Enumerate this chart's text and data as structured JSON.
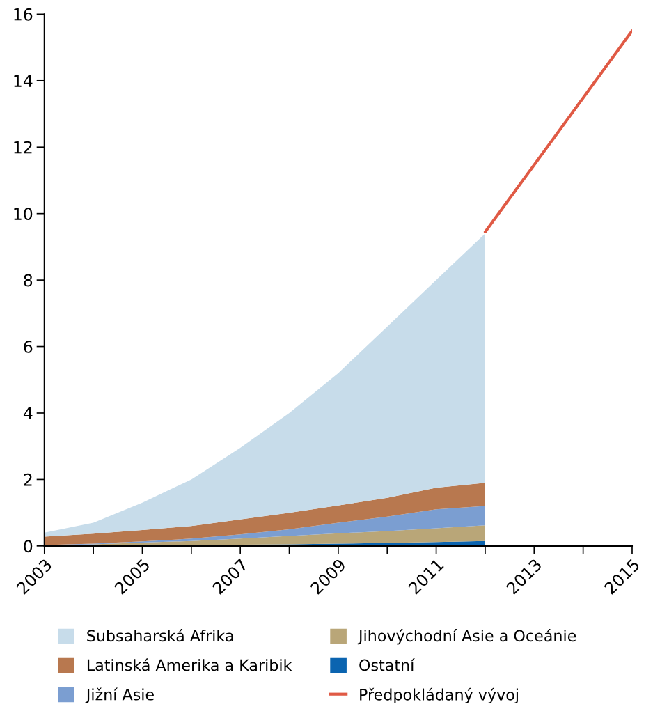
{
  "chart_data": {
    "type": "area",
    "stacked": true,
    "x": [
      2003,
      2004,
      2005,
      2006,
      2007,
      2008,
      2009,
      2010,
      2011,
      2012
    ],
    "series": [
      {
        "name": "Ostatní",
        "color": "#0b64b0",
        "values": [
          0.01,
          0.01,
          0.02,
          0.03,
          0.04,
          0.05,
          0.07,
          0.09,
          0.12,
          0.15
        ]
      },
      {
        "name": "Jihovýchodní Asie a Oceánie",
        "color": "#b9a678",
        "values": [
          0.01,
          0.04,
          0.08,
          0.12,
          0.18,
          0.25,
          0.31,
          0.36,
          0.41,
          0.47
        ]
      },
      {
        "name": "Jižní Asie",
        "color": "#7b9ed1",
        "values": [
          0.01,
          0.02,
          0.04,
          0.07,
          0.13,
          0.2,
          0.32,
          0.43,
          0.57,
          0.58
        ]
      },
      {
        "name": "Latinská Amerika a Karibik",
        "color": "#b8784f",
        "values": [
          0.25,
          0.3,
          0.34,
          0.38,
          0.45,
          0.5,
          0.52,
          0.57,
          0.65,
          0.7
        ]
      },
      {
        "name": "Subsaharská Afrika",
        "color": "#c7dcea",
        "values": [
          0.12,
          0.33,
          0.82,
          1.4,
          2.15,
          3.0,
          3.98,
          5.15,
          6.25,
          7.5
        ]
      },
      {
        "name": "Předpokládaný vývoj",
        "type": "line",
        "color": "#e05a45",
        "x": [
          2012,
          2015
        ],
        "values": [
          9.45,
          15.5
        ]
      }
    ],
    "xlim": [
      2003,
      2015
    ],
    "xticks": [
      2003,
      {
        "value": 2004,
        "label": null
      },
      2005,
      {
        "value": 2006,
        "label": null
      },
      2007,
      {
        "value": 2008,
        "label": null
      },
      2009,
      {
        "value": 2010,
        "label": null
      },
      2011,
      {
        "value": 2012,
        "label": null
      },
      2013,
      {
        "value": 2014,
        "label": null
      },
      2015
    ],
    "ylim": [
      0,
      16
    ],
    "yticks": [
      0,
      2,
      4,
      6,
      8,
      10,
      12,
      14,
      16
    ],
    "grid": false,
    "legend": "bottom"
  }
}
